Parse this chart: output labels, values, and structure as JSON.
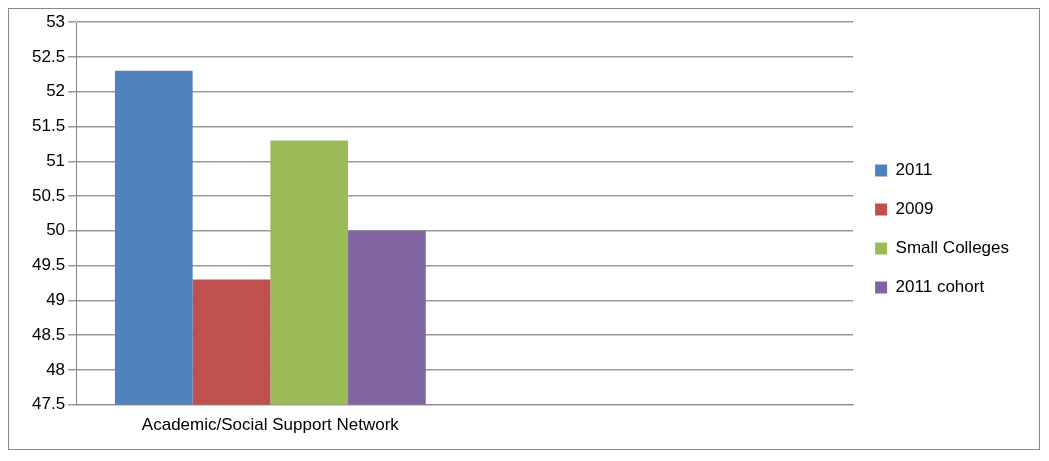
{
  "chart_data": {
    "type": "bar",
    "categories": [
      "Academic/Social Support Network",
      null
    ],
    "series": [
      {
        "name": "2011",
        "color": "#4f81bd",
        "values": [
          52.3,
          null
        ]
      },
      {
        "name": "2009",
        "color": "#c0504d",
        "values": [
          49.3,
          null
        ]
      },
      {
        "name": "Small Colleges",
        "color": "#9bbb59",
        "values": [
          51.3,
          null
        ]
      },
      {
        "name": "2011 cohort",
        "color": "#8064a2",
        "values": [
          50,
          null
        ]
      }
    ],
    "ylim": [
      47.5,
      53
    ],
    "yticks": [
      47.5,
      48,
      48.5,
      49,
      49.5,
      50,
      50.5,
      51,
      51.5,
      52,
      52.5,
      53
    ],
    "grid": "y",
    "legend": "right"
  }
}
